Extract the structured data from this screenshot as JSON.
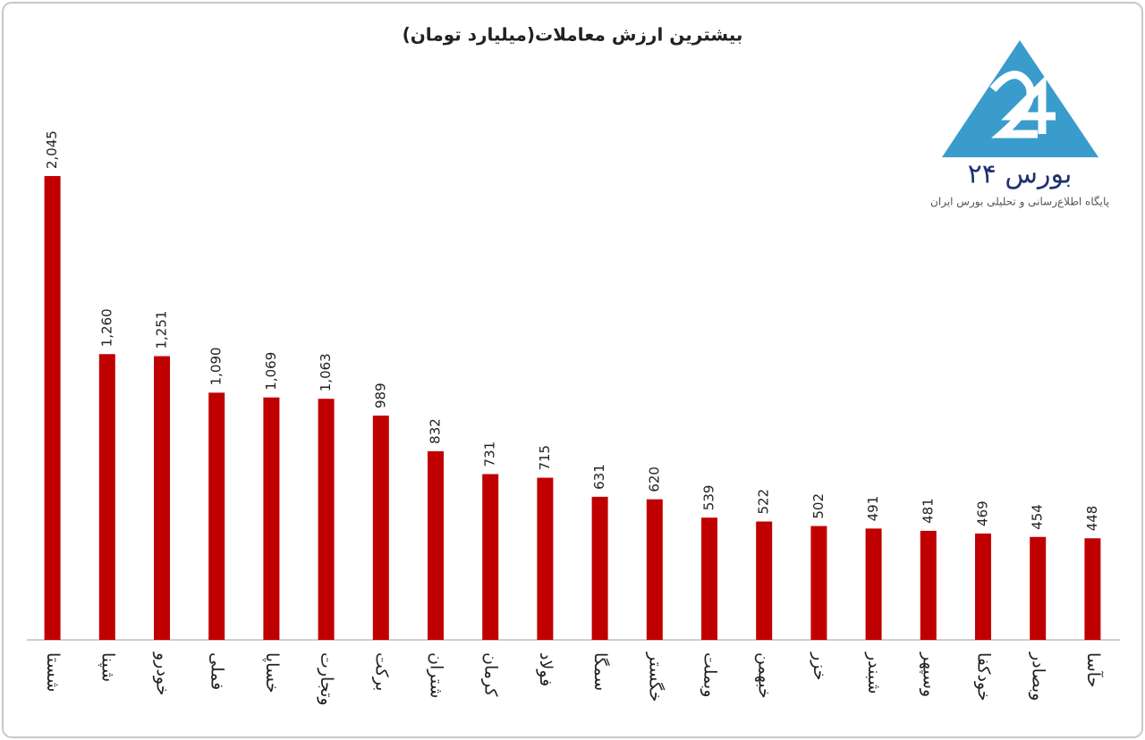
{
  "chart_data": {
    "type": "bar",
    "title": "بیشترین ارزش معاملات(میلیارد تومان)",
    "categories": [
      "شستا",
      "شپنا",
      "خودرو",
      "فملی",
      "خساپا",
      "وتجارت",
      "برکت",
      "شتران",
      "کرمان",
      "فولاد",
      "سمگا",
      "خگستر",
      "وبملت",
      "خبهمن",
      "خزر",
      "شبندر",
      "وسپهر",
      "خودکفا",
      "وبصادر",
      "حآسا"
    ],
    "values": [
      2045,
      1260,
      1251,
      1090,
      1069,
      1063,
      989,
      832,
      731,
      715,
      631,
      620,
      539,
      522,
      502,
      491,
      481,
      469,
      454,
      448
    ],
    "value_labels": [
      "2,045",
      "1,260",
      "1,251",
      "1,090",
      "1,069",
      "1,063",
      "989",
      "832",
      "731",
      "715",
      "631",
      "620",
      "539",
      "522",
      "502",
      "491",
      "481",
      "469",
      "454",
      "448"
    ],
    "color": "#c00000"
  },
  "logo": {
    "name": "بورس ۲۴",
    "tagline": "پایگاه اطلاع‌رسانی و تحلیلی بورس ایران"
  }
}
